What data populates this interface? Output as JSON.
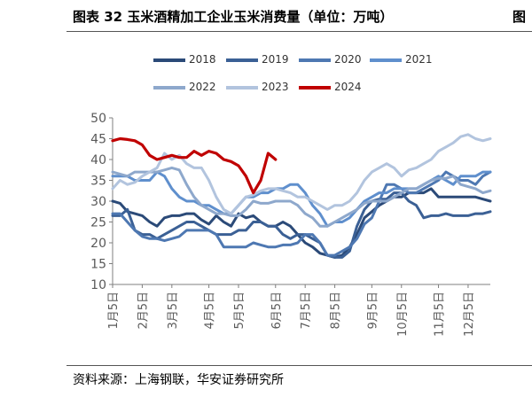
{
  "title": "图表 32  玉米酒精加工企业玉米消费量（单位：万吨）",
  "edge_mark": "图",
  "source": "资料来源：上海钢联，华安证券研究所",
  "colors": {
    "2018": "#2b4a78",
    "2019": "#3b6095",
    "2020": "#4e78b2",
    "2021": "#5f8fcd",
    "2022": "#8ea8cc",
    "2023": "#b2c4de",
    "2024": "#c00000"
  },
  "chart_data": {
    "type": "line",
    "ylim": [
      10,
      50
    ],
    "yticks": [
      10,
      15,
      20,
      25,
      30,
      35,
      40,
      45,
      50
    ],
    "x_count": 52,
    "xtick_labels": [
      "1月5日",
      "2月5日",
      "3月5日",
      "4月5日",
      "5月5日",
      "6月5日",
      "7月5日",
      "8月5日",
      "9月5日",
      "10月5日",
      "11月5日",
      "12月5日"
    ],
    "xtick_index": [
      0,
      4,
      8,
      13,
      17,
      22,
      26,
      30,
      35,
      39,
      44,
      48
    ],
    "legend_rows": [
      [
        "2018",
        "2019",
        "2020",
        "2021"
      ],
      [
        "2022",
        "2023",
        "2024"
      ]
    ],
    "series": [
      {
        "name": "2018",
        "values": [
          30,
          29.5,
          27.5,
          27,
          26.5,
          25,
          24,
          26,
          26.5,
          26.5,
          27,
          27,
          25.5,
          24.5,
          26.5,
          25,
          24,
          27,
          26,
          26.5,
          25,
          24,
          24,
          25,
          24,
          22,
          20,
          19,
          17.5,
          17,
          16.5,
          17,
          19,
          22,
          26,
          27.5,
          29,
          30,
          31,
          31,
          32,
          32,
          32,
          33,
          31,
          31,
          31,
          31,
          31,
          31,
          30.5,
          30
        ]
      },
      {
        "name": "2019",
        "values": [
          26.5,
          26.5,
          28,
          23,
          22,
          22,
          21,
          22,
          23,
          24,
          25,
          25,
          24,
          23,
          22,
          22,
          22,
          23,
          23,
          25,
          25,
          24,
          24,
          22,
          21,
          22,
          22,
          21,
          20,
          17,
          16.5,
          16.5,
          18,
          24,
          28,
          30,
          30.5,
          30.5,
          32,
          32,
          30,
          29,
          26,
          26.5,
          26.5,
          27,
          26.5,
          26.5,
          26.5,
          27,
          27,
          27.5
        ]
      },
      {
        "name": "2020",
        "values": [
          27,
          27,
          25,
          23,
          21.5,
          21,
          21,
          20.5,
          21,
          21.5,
          23,
          23,
          23,
          23,
          22,
          19,
          19,
          19,
          19,
          20,
          19.5,
          19,
          19,
          19.5,
          19.5,
          20,
          22,
          22,
          20,
          17,
          17,
          18,
          19,
          21,
          24.5,
          26,
          30,
          34,
          34,
          33,
          32,
          32,
          33,
          34,
          35,
          37,
          36,
          35,
          35,
          34,
          36,
          37
        ]
      },
      {
        "name": "2021",
        "values": [
          36,
          36,
          36,
          35,
          35,
          35,
          37,
          36,
          33,
          31,
          30,
          30,
          29,
          29,
          28,
          27,
          27,
          29,
          31,
          31,
          32,
          32,
          33,
          33,
          34,
          34,
          32,
          29,
          27,
          24,
          25,
          25,
          26,
          28,
          30,
          31,
          32,
          32,
          33,
          33,
          33,
          33,
          34,
          35,
          36,
          35,
          34,
          36,
          36,
          36,
          37,
          37
        ]
      },
      {
        "name": "2022",
        "values": [
          37,
          36.5,
          36,
          37,
          37,
          37,
          37,
          37.5,
          38,
          37.5,
          34,
          31,
          29,
          28,
          27,
          27,
          26.5,
          26.5,
          28,
          30,
          29.5,
          29.5,
          30,
          30,
          30,
          29,
          27,
          26,
          24,
          24,
          25,
          26,
          27,
          28,
          29.5,
          30,
          30,
          30,
          31,
          32,
          33,
          33,
          34,
          35,
          35.5,
          35.5,
          36,
          34,
          33.5,
          33,
          32,
          32.5
        ]
      },
      {
        "name": "2023",
        "values": [
          33,
          35,
          34,
          34.5,
          36,
          37,
          38,
          41.5,
          40,
          41,
          39,
          38,
          38,
          35,
          31,
          28,
          27,
          29,
          31,
          31.5,
          32.5,
          33,
          33,
          32.5,
          32,
          31,
          31,
          30,
          29,
          28,
          29,
          29,
          30,
          32,
          35,
          37,
          38,
          39,
          38,
          36,
          37.5,
          38,
          39,
          40,
          42,
          43,
          44,
          45.5,
          46,
          45,
          44.5,
          45
        ]
      },
      {
        "name": "2024",
        "values": [
          44.5,
          45,
          44.8,
          44.5,
          43.5,
          41,
          40,
          40.5,
          41,
          40.5,
          40.5,
          42,
          41,
          42,
          41.5,
          40,
          39.5,
          38.5,
          36,
          32,
          35,
          41.5,
          40
        ]
      }
    ]
  }
}
